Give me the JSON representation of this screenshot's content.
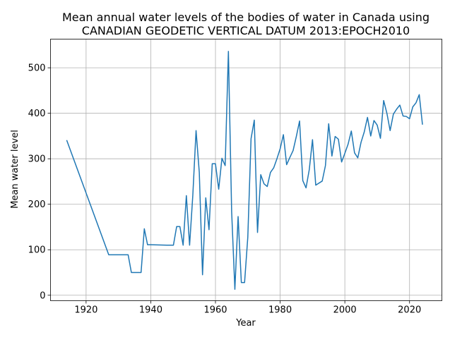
{
  "chart_data": {
    "type": "line",
    "title_lines": [
      "Mean annual water levels of the bodies of water in Canada using",
      "CANADIAN GEODETIC VERTICAL DATUM 2013:EPOCH2010"
    ],
    "xlabel": "Year",
    "ylabel": "Mean water level",
    "xlim": [
      1909,
      2030
    ],
    "ylim": [
      -12,
      563
    ],
    "x_ticks": [
      1920,
      1940,
      1960,
      1980,
      2000,
      2020
    ],
    "y_ticks": [
      0,
      100,
      200,
      300,
      400,
      500
    ],
    "grid": true,
    "series": [
      {
        "color": "#1f77b4",
        "points": [
          [
            1914,
            341
          ],
          [
            1927,
            89
          ],
          [
            1930,
            89
          ],
          [
            1931,
            89
          ],
          [
            1932,
            89
          ],
          [
            1933,
            89
          ],
          [
            1934,
            50
          ],
          [
            1935,
            50
          ],
          [
            1936,
            50
          ],
          [
            1937,
            50
          ],
          [
            1938,
            146
          ],
          [
            1939,
            111
          ],
          [
            1940,
            111
          ],
          [
            1945,
            110
          ],
          [
            1947,
            110
          ],
          [
            1948,
            151
          ],
          [
            1949,
            151
          ],
          [
            1950,
            110
          ],
          [
            1951,
            219
          ],
          [
            1952,
            110
          ],
          [
            1953,
            220
          ],
          [
            1954,
            362
          ],
          [
            1955,
            270
          ],
          [
            1956,
            45
          ],
          [
            1957,
            214
          ],
          [
            1958,
            144
          ],
          [
            1959,
            289
          ],
          [
            1960,
            289
          ],
          [
            1961,
            233
          ],
          [
            1962,
            301
          ],
          [
            1963,
            285
          ],
          [
            1964,
            536
          ],
          [
            1965,
            184
          ],
          [
            1966,
            13
          ],
          [
            1967,
            173
          ],
          [
            1968,
            28
          ],
          [
            1969,
            28
          ],
          [
            1970,
            128
          ],
          [
            1971,
            344
          ],
          [
            1972,
            385
          ],
          [
            1973,
            138
          ],
          [
            1974,
            265
          ],
          [
            1975,
            245
          ],
          [
            1976,
            239
          ],
          [
            1977,
            270
          ],
          [
            1978,
            280
          ],
          [
            1979,
            300
          ],
          [
            1980,
            322
          ],
          [
            1981,
            353
          ],
          [
            1982,
            287
          ],
          [
            1983,
            303
          ],
          [
            1984,
            318
          ],
          [
            1985,
            349
          ],
          [
            1986,
            383
          ],
          [
            1987,
            252
          ],
          [
            1988,
            236
          ],
          [
            1989,
            276
          ],
          [
            1990,
            342
          ],
          [
            1991,
            242
          ],
          [
            1993,
            251
          ],
          [
            1994,
            285
          ],
          [
            1995,
            377
          ],
          [
            1996,
            306
          ],
          [
            1997,
            349
          ],
          [
            1998,
            343
          ],
          [
            1999,
            293
          ],
          [
            2000,
            312
          ],
          [
            2001,
            332
          ],
          [
            2002,
            361
          ],
          [
            2003,
            313
          ],
          [
            2004,
            302
          ],
          [
            2005,
            336
          ],
          [
            2006,
            359
          ],
          [
            2007,
            391
          ],
          [
            2008,
            350
          ],
          [
            2009,
            384
          ],
          [
            2010,
            374
          ],
          [
            2011,
            345
          ],
          [
            2012,
            428
          ],
          [
            2013,
            400
          ],
          [
            2014,
            362
          ],
          [
            2015,
            398
          ],
          [
            2016,
            409
          ],
          [
            2017,
            418
          ],
          [
            2018,
            394
          ],
          [
            2019,
            393
          ],
          [
            2020,
            388
          ],
          [
            2021,
            414
          ],
          [
            2022,
            423
          ],
          [
            2023,
            441
          ],
          [
            2024,
            375
          ]
        ]
      }
    ]
  }
}
